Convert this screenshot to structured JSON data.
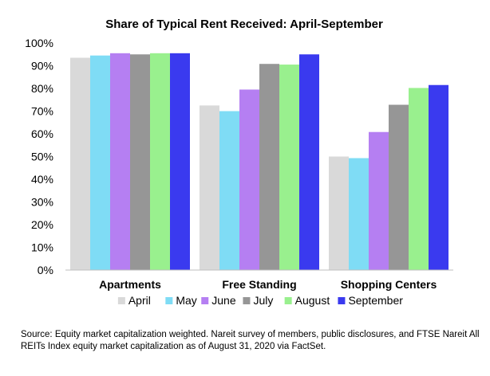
{
  "chart_data": {
    "type": "bar",
    "title": "Share of Typical Rent Received: April-September",
    "xlabel": "",
    "ylabel": "",
    "ylim": [
      0,
      100
    ],
    "yticks": [
      "0%",
      "10%",
      "20%",
      "30%",
      "40%",
      "50%",
      "60%",
      "70%",
      "80%",
      "90%",
      "100%"
    ],
    "categories": [
      "Apartments",
      "Free Standing",
      "Shopping Centers"
    ],
    "series": [
      {
        "name": "April",
        "color": "#d9d9d9",
        "values": [
          93.5,
          72.5,
          50
        ]
      },
      {
        "name": "May",
        "color": "#7fdcf5",
        "values": [
          94.5,
          70,
          49.3
        ]
      },
      {
        "name": "June",
        "color": "#b57ff2",
        "values": [
          95.5,
          79.5,
          60.8
        ]
      },
      {
        "name": "July",
        "color": "#969696",
        "values": [
          95,
          90.8,
          72.8
        ]
      },
      {
        "name": "August",
        "color": "#99f08e",
        "values": [
          95.5,
          90.5,
          80.2
        ]
      },
      {
        "name": "September",
        "color": "#3a3aef",
        "values": [
          95.5,
          95,
          81.5
        ]
      }
    ],
    "grid": false,
    "legend_position": "bottom"
  },
  "footer": {
    "source_note": "Source: Equity market capitalization weighted. Nareit survey of members, public disclosures, and FTSE Nareit All REITs Index equity market capitalization as of August 31, 2020 via FactSet."
  }
}
